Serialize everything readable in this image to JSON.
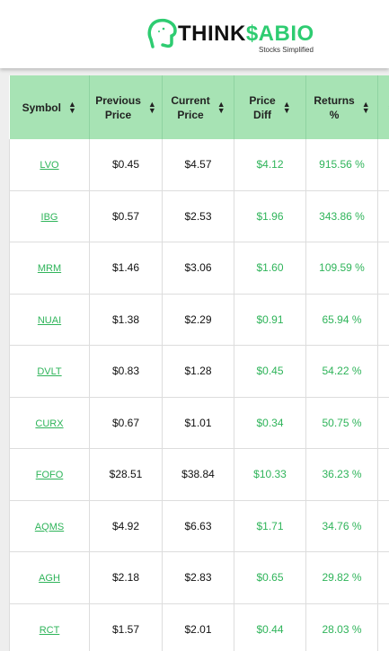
{
  "header": {
    "brand_dark": "THINK",
    "brand_green": "$ABIO",
    "tagline": "Stocks Simplified"
  },
  "colors": {
    "accent_green": "#2ecc71",
    "header_bg": "#a7e3b4",
    "positive": "#2fb45a"
  },
  "table": {
    "headers": [
      {
        "line1": "Symbol",
        "line2": ""
      },
      {
        "line1": "Previous",
        "line2": "Price"
      },
      {
        "line1": "Current",
        "line2": "Price"
      },
      {
        "line1": "Price",
        "line2": "Diff"
      },
      {
        "line1": "Returns",
        "line2": "%"
      }
    ],
    "rows": [
      {
        "symbol": "LVO",
        "prev": "$0.45",
        "curr": "$4.57",
        "diff": "$4.12",
        "ret": "915.56 %"
      },
      {
        "symbol": "IBG",
        "prev": "$0.57",
        "curr": "$2.53",
        "diff": "$1.96",
        "ret": "343.86 %"
      },
      {
        "symbol": "MRM",
        "prev": "$1.46",
        "curr": "$3.06",
        "diff": "$1.60",
        "ret": "109.59 %"
      },
      {
        "symbol": "NUAI",
        "prev": "$1.38",
        "curr": "$2.29",
        "diff": "$0.91",
        "ret": "65.94 %"
      },
      {
        "symbol": "DVLT",
        "prev": "$0.83",
        "curr": "$1.28",
        "diff": "$0.45",
        "ret": "54.22 %"
      },
      {
        "symbol": "CURX",
        "prev": "$0.67",
        "curr": "$1.01",
        "diff": "$0.34",
        "ret": "50.75 %"
      },
      {
        "symbol": "FOFO",
        "prev": "$28.51",
        "curr": "$38.84",
        "diff": "$10.33",
        "ret": "36.23 %"
      },
      {
        "symbol": "AQMS",
        "prev": "$4.92",
        "curr": "$6.63",
        "diff": "$1.71",
        "ret": "34.76 %"
      },
      {
        "symbol": "AGH",
        "prev": "$2.18",
        "curr": "$2.83",
        "diff": "$0.65",
        "ret": "29.82 %"
      },
      {
        "symbol": "RCT",
        "prev": "$1.57",
        "curr": "$2.01",
        "diff": "$0.44",
        "ret": "28.03 %"
      }
    ]
  }
}
